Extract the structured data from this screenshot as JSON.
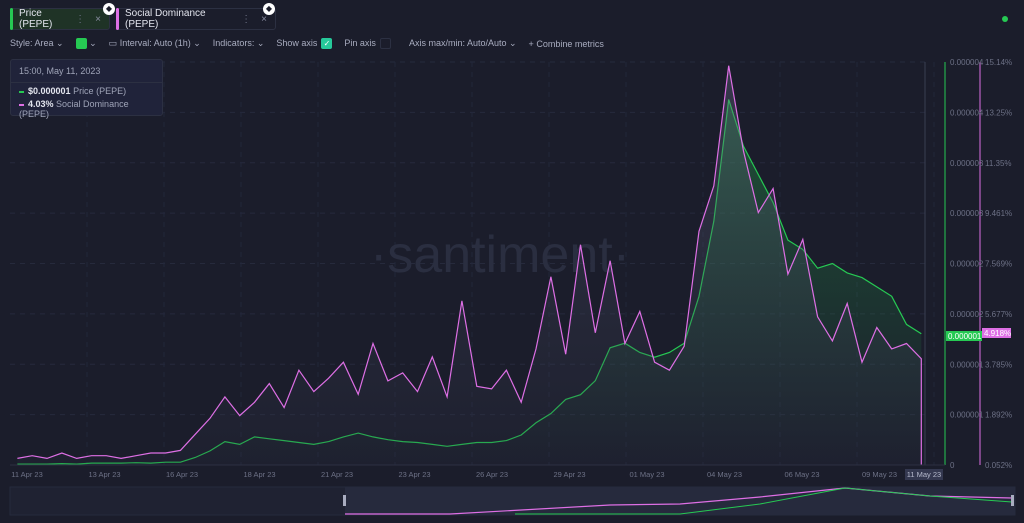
{
  "tabs": [
    {
      "label": "Price (PEPE)",
      "color": "#26c953"
    },
    {
      "label": "Social Dominance (PEPE)",
      "color": "#de6fe5"
    }
  ],
  "toolbar": {
    "style": "Style: Area",
    "color_swatch": "#26c953",
    "interval": "Interval: Auto (1h)",
    "indicators": "Indicators:",
    "show_axis": "Show axis",
    "show_axis_checked": true,
    "pin_axis": "Pin axis",
    "pin_axis_checked": false,
    "axis_maxmin": "Axis max/min: Auto/Auto",
    "combine": "Combine metrics"
  },
  "tooltip": {
    "date": "15:00, May 11, 2023",
    "price_value": "$0.000001",
    "price_label": "Price (PEPE)",
    "dom_value": "4.03%",
    "dom_label": "Social Dominance (PEPE)"
  },
  "watermark": "·santiment·",
  "chart_data": {
    "type": "area",
    "x_ticks": [
      "11 Apr 23",
      "13 Apr 23",
      "16 Apr 23",
      "18 Apr 23",
      "21 Apr 23",
      "23 Apr 23",
      "26 Apr 23",
      "29 Apr 23",
      "01 May 23",
      "04 May 23",
      "06 May 23",
      "09 May 23",
      "11 May 23"
    ],
    "crosshair_label": "11 May 23",
    "price_axis": {
      "ticks": [
        "0.000004",
        "0.000004",
        "0.000003",
        "0.000003",
        "0.000002",
        "0.000002",
        "0.000001",
        "0.000001",
        "0"
      ],
      "current": "0.000001",
      "range": [
        0,
        4.3e-06
      ],
      "color": "#26c953"
    },
    "dominance_axis": {
      "ticks": [
        "15.14%",
        "13.25%",
        "11.35%",
        "9.461%",
        "7.569%",
        "5.677%",
        "3.785%",
        "1.892%",
        "0.052%"
      ],
      "current": "4.918%",
      "range": [
        0.052,
        15.14
      ],
      "color": "#de6fe5"
    },
    "x_range": [
      "2023-04-10T18:00",
      "2023-05-11T15:00"
    ],
    "grid": true,
    "series": [
      {
        "name": "Price (PEPE)",
        "start": "2023-04-11T00:00",
        "step_hours": 12,
        "values": [
          1e-08,
          1e-08,
          1e-08,
          1.5e-08,
          1e-08,
          2e-08,
          2e-08,
          2e-08,
          2.5e-08,
          2e-08,
          3e-08,
          3e-08,
          8e-08,
          1.5e-07,
          2.5e-07,
          2.2e-07,
          3e-07,
          2.8e-07,
          2.6e-07,
          2.4e-07,
          2.2e-07,
          2.5e-07,
          3e-07,
          3.4e-07,
          3e-07,
          2.7e-07,
          2.5e-07,
          2.4e-07,
          2.2e-07,
          2e-07,
          2.2e-07,
          2.4e-07,
          2.4e-07,
          2.6e-07,
          3.2e-07,
          4.5e-07,
          5.5e-07,
          7e-07,
          7.5e-07,
          9e-07,
          1.25e-06,
          1.3e-06,
          1.2e-06,
          1.15e-06,
          1.2e-06,
          1.3e-06,
          1.8e-06,
          2.6e-06,
          3.9e-06,
          3.4e-06,
          3.1e-06,
          2.8e-06,
          2.4e-06,
          2.3e-06,
          2.1e-06,
          2.15e-06,
          2.05e-06,
          2e-06,
          1.9e-06,
          1.8e-06,
          1.5e-06,
          1.4e-06
        ]
      },
      {
        "name": "Social Dominance (PEPE)",
        "start": "2023-04-11T00:00",
        "step_hours": 12,
        "values": [
          0.3,
          0.4,
          0.3,
          0.5,
          0.3,
          0.4,
          0.4,
          0.3,
          0.4,
          0.5,
          0.5,
          0.6,
          1.2,
          1.8,
          2.6,
          1.9,
          2.4,
          3.1,
          2.2,
          3.6,
          2.8,
          3.3,
          3.9,
          2.7,
          4.6,
          3.2,
          3.5,
          2.8,
          4.1,
          2.6,
          6.2,
          3.0,
          2.9,
          3.6,
          2.4,
          4.4,
          7.1,
          4.2,
          8.3,
          5.0,
          7.7,
          4.6,
          5.8,
          3.9,
          3.6,
          4.5,
          8.8,
          10.5,
          15.0,
          11.8,
          9.5,
          10.4,
          7.2,
          8.5,
          5.6,
          4.7,
          6.1,
          3.9,
          5.2,
          4.4,
          4.6,
          4.03
        ]
      }
    ]
  }
}
